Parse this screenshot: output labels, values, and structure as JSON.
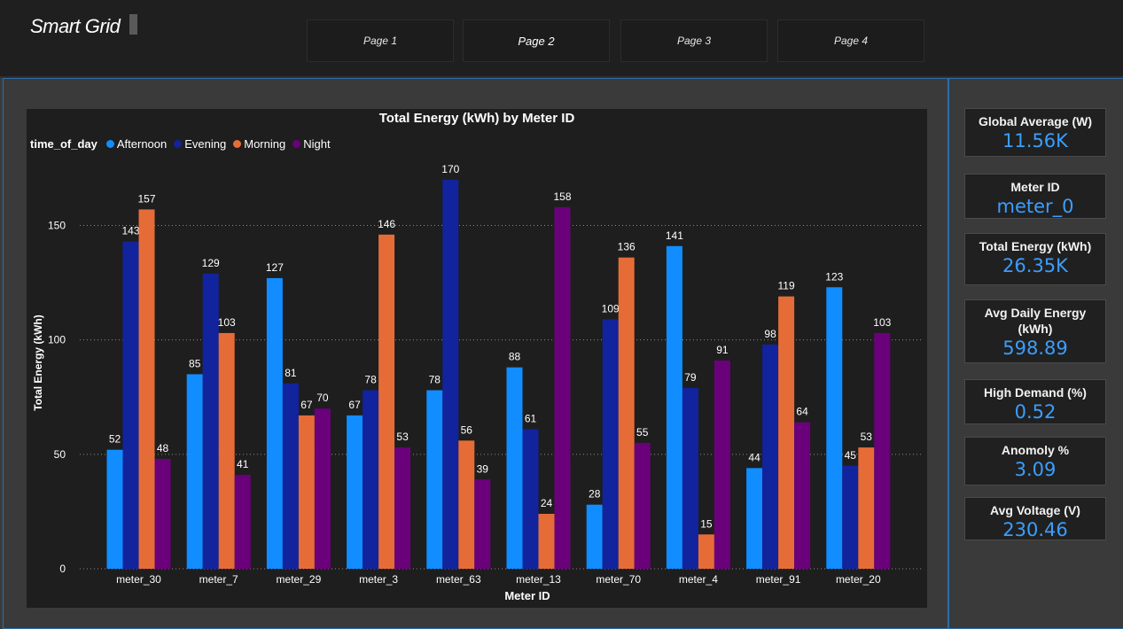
{
  "app": {
    "title": "Smart Grid"
  },
  "nav": {
    "tabs": [
      {
        "label": "Page 1"
      },
      {
        "label": "Page 2"
      },
      {
        "label": "Page 3"
      },
      {
        "label": "Page 4"
      }
    ],
    "active_index": 1
  },
  "kpis": [
    {
      "label": "Global Average (W)",
      "value": "11.56K"
    },
    {
      "label": "Meter ID",
      "value": "meter_0"
    },
    {
      "label": "Total Energy (kWh)",
      "value": "26.35K"
    },
    {
      "label": "Avg Daily Energy (kWh)",
      "value": "598.89"
    },
    {
      "label": "High Demand (%)",
      "value": "0.52"
    },
    {
      "label": "Anomoly %",
      "value": "3.09"
    },
    {
      "label": "Avg Voltage (V)",
      "value": "230.46"
    }
  ],
  "chart_data": {
    "type": "bar",
    "title": "Total Energy (kWh) by Meter ID",
    "xlabel": "Meter ID",
    "ylabel": "Total Energy (kWh)",
    "legend_title": "time_of_day",
    "legend_position": "top-left",
    "grid": true,
    "ylim": [
      0,
      180
    ],
    "yticks": [
      0,
      50,
      100,
      150
    ],
    "categories": [
      "meter_30",
      "meter_7",
      "meter_29",
      "meter_3",
      "meter_63",
      "meter_13",
      "meter_70",
      "meter_4",
      "meter_91",
      "meter_20"
    ],
    "series": [
      {
        "name": "Afternoon",
        "color": "#118dff",
        "values": [
          52,
          85,
          127,
          67,
          78,
          88,
          28,
          141,
          44,
          123
        ]
      },
      {
        "name": "Evening",
        "color": "#12239e",
        "values": [
          143,
          129,
          81,
          78,
          170,
          61,
          109,
          79,
          98,
          45
        ]
      },
      {
        "name": "Morning",
        "color": "#e66c37",
        "values": [
          157,
          103,
          67,
          146,
          56,
          24,
          136,
          15,
          119,
          53
        ]
      },
      {
        "name": "Night",
        "color": "#6b007b",
        "values": [
          48,
          41,
          70,
          53,
          39,
          158,
          55,
          91,
          64,
          103
        ]
      }
    ]
  }
}
